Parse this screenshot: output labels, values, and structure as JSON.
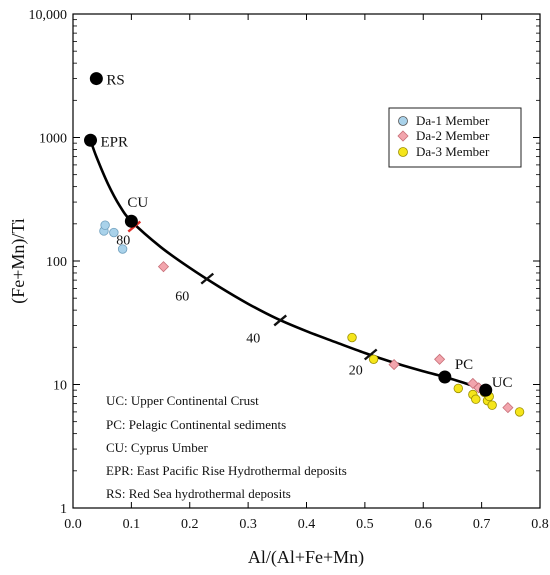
{
  "chart_data": {
    "type": "scatter",
    "xlabel": "Al/(Al+Fe+Mn)",
    "ylabel": "(Fe+Mn)/Ti",
    "xlim": [
      0.0,
      0.8
    ],
    "ylim": [
      1,
      10000
    ],
    "y_scale": "log",
    "x_ticks": [
      "0.0",
      "0.1",
      "0.2",
      "0.3",
      "0.4",
      "0.5",
      "0.6",
      "0.7",
      "0.8"
    ],
    "y_ticks": [
      "1",
      "10",
      "100",
      "1000",
      "10,000"
    ],
    "grid": false,
    "legend_position": "top-right",
    "series": [
      {
        "name": "Da-1 Member",
        "color": "#a9d2ea",
        "marker": "circle",
        "points": [
          [
            0.053,
            175
          ],
          [
            0.055,
            195
          ],
          [
            0.07,
            170
          ],
          [
            0.085,
            125
          ]
        ]
      },
      {
        "name": "Da-2 Member",
        "color": "#f2a5ad",
        "marker": "diamond",
        "points": [
          [
            0.155,
            90
          ],
          [
            0.55,
            14.5
          ],
          [
            0.628,
            16
          ],
          [
            0.685,
            10.2
          ],
          [
            0.695,
            9.4
          ],
          [
            0.745,
            6.5
          ]
        ]
      },
      {
        "name": "Da-3 Member",
        "color": "#f5e51a",
        "marker": "circle",
        "points": [
          [
            0.478,
            24
          ],
          [
            0.515,
            16
          ],
          [
            0.66,
            9.3
          ],
          [
            0.685,
            8.3
          ],
          [
            0.69,
            7.6
          ],
          [
            0.705,
            8.6
          ],
          [
            0.71,
            7.4
          ],
          [
            0.713,
            8.0
          ],
          [
            0.718,
            6.8
          ],
          [
            0.765,
            6.0
          ]
        ]
      }
    ],
    "end_members": [
      {
        "label": "RS",
        "x": 0.04,
        "y": 3000
      },
      {
        "label": "EPR",
        "x": 0.03,
        "y": 950
      },
      {
        "label": "CU",
        "x": 0.1,
        "y": 210
      },
      {
        "label": "PC",
        "x": 0.637,
        "y": 11.5
      },
      {
        "label": "UC",
        "x": 0.707,
        "y": 9.0
      }
    ],
    "mixing_curve": [
      [
        0.03,
        950
      ],
      [
        0.04,
        700
      ],
      [
        0.06,
        420
      ],
      [
        0.08,
        280
      ],
      [
        0.1,
        210
      ],
      [
        0.15,
        130
      ],
      [
        0.2,
        88
      ],
      [
        0.25,
        62
      ],
      [
        0.3,
        45
      ],
      [
        0.35,
        34
      ],
      [
        0.4,
        27
      ],
      [
        0.45,
        22
      ],
      [
        0.5,
        18
      ],
      [
        0.55,
        15
      ],
      [
        0.6,
        12.8
      ],
      [
        0.637,
        11.5
      ],
      [
        0.67,
        10.3
      ],
      [
        0.707,
        9.0
      ]
    ],
    "curve_ticks": [
      {
        "label": "80",
        "x": 0.105,
        "y": 190,
        "color": "#e0302a"
      },
      {
        "label": "60",
        "x": 0.23,
        "y": 72,
        "color": "#111111"
      },
      {
        "label": "40",
        "x": 0.355,
        "y": 33,
        "color": "#111111"
      },
      {
        "label": "20",
        "x": 0.51,
        "y": 17.5,
        "color": "#111111"
      }
    ],
    "notes": [
      "UC: Upper Continental Crust",
      "PC: Pelagic Continental sediments",
      "CU: Cyprus Umber",
      "EPR: East Pacific Rise Hydrothermal deposits",
      "RS: Red Sea hydrothermal deposits"
    ]
  }
}
